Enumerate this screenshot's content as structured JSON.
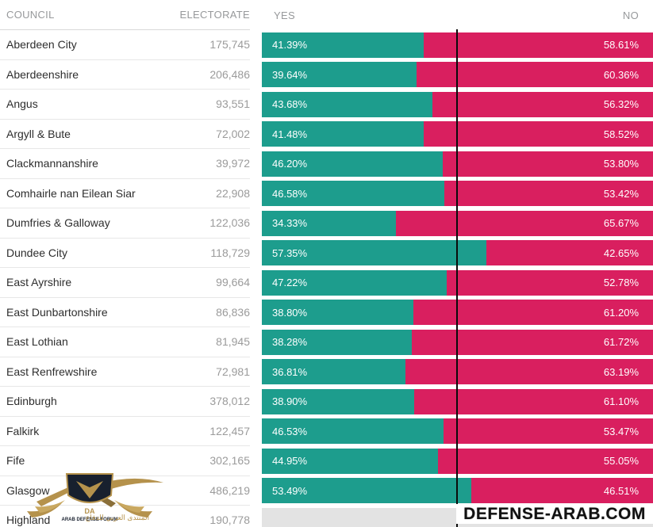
{
  "header": {
    "council": "COUNCIL",
    "electorate": "ELECTORATE",
    "yes": "YES",
    "no": "NO"
  },
  "colors": {
    "yes_bar": "#1d9d8d",
    "no_bar": "#d91f5f",
    "pending_bar": "#e3e3e3",
    "midline": "#0b0b0b",
    "header_text": "#97999b",
    "council_text": "#2e2e2e",
    "electorate_text": "#9b9b9b",
    "bar_label_text": "#ffffff",
    "logo_gold": "#b5924c",
    "logo_navy": "#18202e"
  },
  "rows": [
    {
      "name": "Aberdeen City",
      "electorate": "175,745",
      "yes_pct": 41.39,
      "no_pct": 58.61,
      "yes_label": "41.39%",
      "no_label": "58.61%"
    },
    {
      "name": "Aberdeenshire",
      "electorate": "206,486",
      "yes_pct": 39.64,
      "no_pct": 60.36,
      "yes_label": "39.64%",
      "no_label": "60.36%"
    },
    {
      "name": "Angus",
      "electorate": "93,551",
      "yes_pct": 43.68,
      "no_pct": 56.32,
      "yes_label": "43.68%",
      "no_label": "56.32%"
    },
    {
      "name": "Argyll & Bute",
      "electorate": "72,002",
      "yes_pct": 41.48,
      "no_pct": 58.52,
      "yes_label": "41.48%",
      "no_label": "58.52%"
    },
    {
      "name": "Clackmannanshire",
      "electorate": "39,972",
      "yes_pct": 46.2,
      "no_pct": 53.8,
      "yes_label": "46.20%",
      "no_label": "53.80%"
    },
    {
      "name": "Comhairle nan Eilean Siar",
      "electorate": "22,908",
      "yes_pct": 46.58,
      "no_pct": 53.42,
      "yes_label": "46.58%",
      "no_label": "53.42%"
    },
    {
      "name": "Dumfries & Galloway",
      "electorate": "122,036",
      "yes_pct": 34.33,
      "no_pct": 65.67,
      "yes_label": "34.33%",
      "no_label": "65.67%"
    },
    {
      "name": "Dundee City",
      "electorate": "118,729",
      "yes_pct": 57.35,
      "no_pct": 42.65,
      "yes_label": "57.35%",
      "no_label": "42.65%"
    },
    {
      "name": "East Ayrshire",
      "electorate": "99,664",
      "yes_pct": 47.22,
      "no_pct": 52.78,
      "yes_label": "47.22%",
      "no_label": "52.78%"
    },
    {
      "name": "East Dunbartonshire",
      "electorate": "86,836",
      "yes_pct": 38.8,
      "no_pct": 61.2,
      "yes_label": "38.80%",
      "no_label": "61.20%"
    },
    {
      "name": "East Lothian",
      "electorate": "81,945",
      "yes_pct": 38.28,
      "no_pct": 61.72,
      "yes_label": "38.28%",
      "no_label": "61.72%"
    },
    {
      "name": "East Renfrewshire",
      "electorate": "72,981",
      "yes_pct": 36.81,
      "no_pct": 63.19,
      "yes_label": "36.81%",
      "no_label": "63.19%"
    },
    {
      "name": "Edinburgh",
      "electorate": "378,012",
      "yes_pct": 38.9,
      "no_pct": 61.1,
      "yes_label": "38.90%",
      "no_label": "61.10%"
    },
    {
      "name": "Falkirk",
      "electorate": "122,457",
      "yes_pct": 46.53,
      "no_pct": 53.47,
      "yes_label": "46.53%",
      "no_label": "53.47%"
    },
    {
      "name": "Fife",
      "electorate": "302,165",
      "yes_pct": 44.95,
      "no_pct": 55.05,
      "yes_label": "44.95%",
      "no_label": "55.05%"
    },
    {
      "name": "Glasgow",
      "electorate": "486,219",
      "yes_pct": 53.49,
      "no_pct": 46.51,
      "yes_label": "53.49%",
      "no_label": "46.51%"
    },
    {
      "name": "Highland",
      "electorate": "190,778",
      "yes_pct": null,
      "no_pct": null,
      "yes_label": "",
      "no_label": ""
    }
  ],
  "watermarks": {
    "site_text": "DEFENSE-ARAB.COM",
    "logo_initials": "DA",
    "logo_caption": "ARAB DEFENSE FORUM",
    "logo_arabic": "المنتدى العربي للدفاع"
  },
  "chart_data": {
    "type": "bar",
    "orientation": "horizontal-stacked",
    "title": "",
    "xlabel": "",
    "ylabel": "",
    "xlim": [
      0,
      100
    ],
    "midline_at": 50,
    "grid": false,
    "legend_position": "top (YES left, NO right)",
    "categories": [
      "Aberdeen City",
      "Aberdeenshire",
      "Angus",
      "Argyll & Bute",
      "Clackmannanshire",
      "Comhairle nan Eilean Siar",
      "Dumfries & Galloway",
      "Dundee City",
      "East Ayrshire",
      "East Dunbartonshire",
      "East Lothian",
      "East Renfrewshire",
      "Edinburgh",
      "Falkirk",
      "Fife",
      "Glasgow",
      "Highland"
    ],
    "electorate": [
      175745,
      206486,
      93551,
      72002,
      39972,
      22908,
      122036,
      118729,
      99664,
      86836,
      81945,
      72981,
      378012,
      122457,
      302165,
      486219,
      190778
    ],
    "series": [
      {
        "name": "YES",
        "color": "#1d9d8d",
        "values": [
          41.39,
          39.64,
          43.68,
          41.48,
          46.2,
          46.58,
          34.33,
          57.35,
          47.22,
          38.8,
          38.28,
          36.81,
          38.9,
          46.53,
          44.95,
          53.49,
          null
        ]
      },
      {
        "name": "NO",
        "color": "#d91f5f",
        "values": [
          58.61,
          60.36,
          56.32,
          58.52,
          53.8,
          53.42,
          65.67,
          42.65,
          52.78,
          61.2,
          61.72,
          63.19,
          61.1,
          53.47,
          55.05,
          46.51,
          null
        ]
      }
    ]
  }
}
